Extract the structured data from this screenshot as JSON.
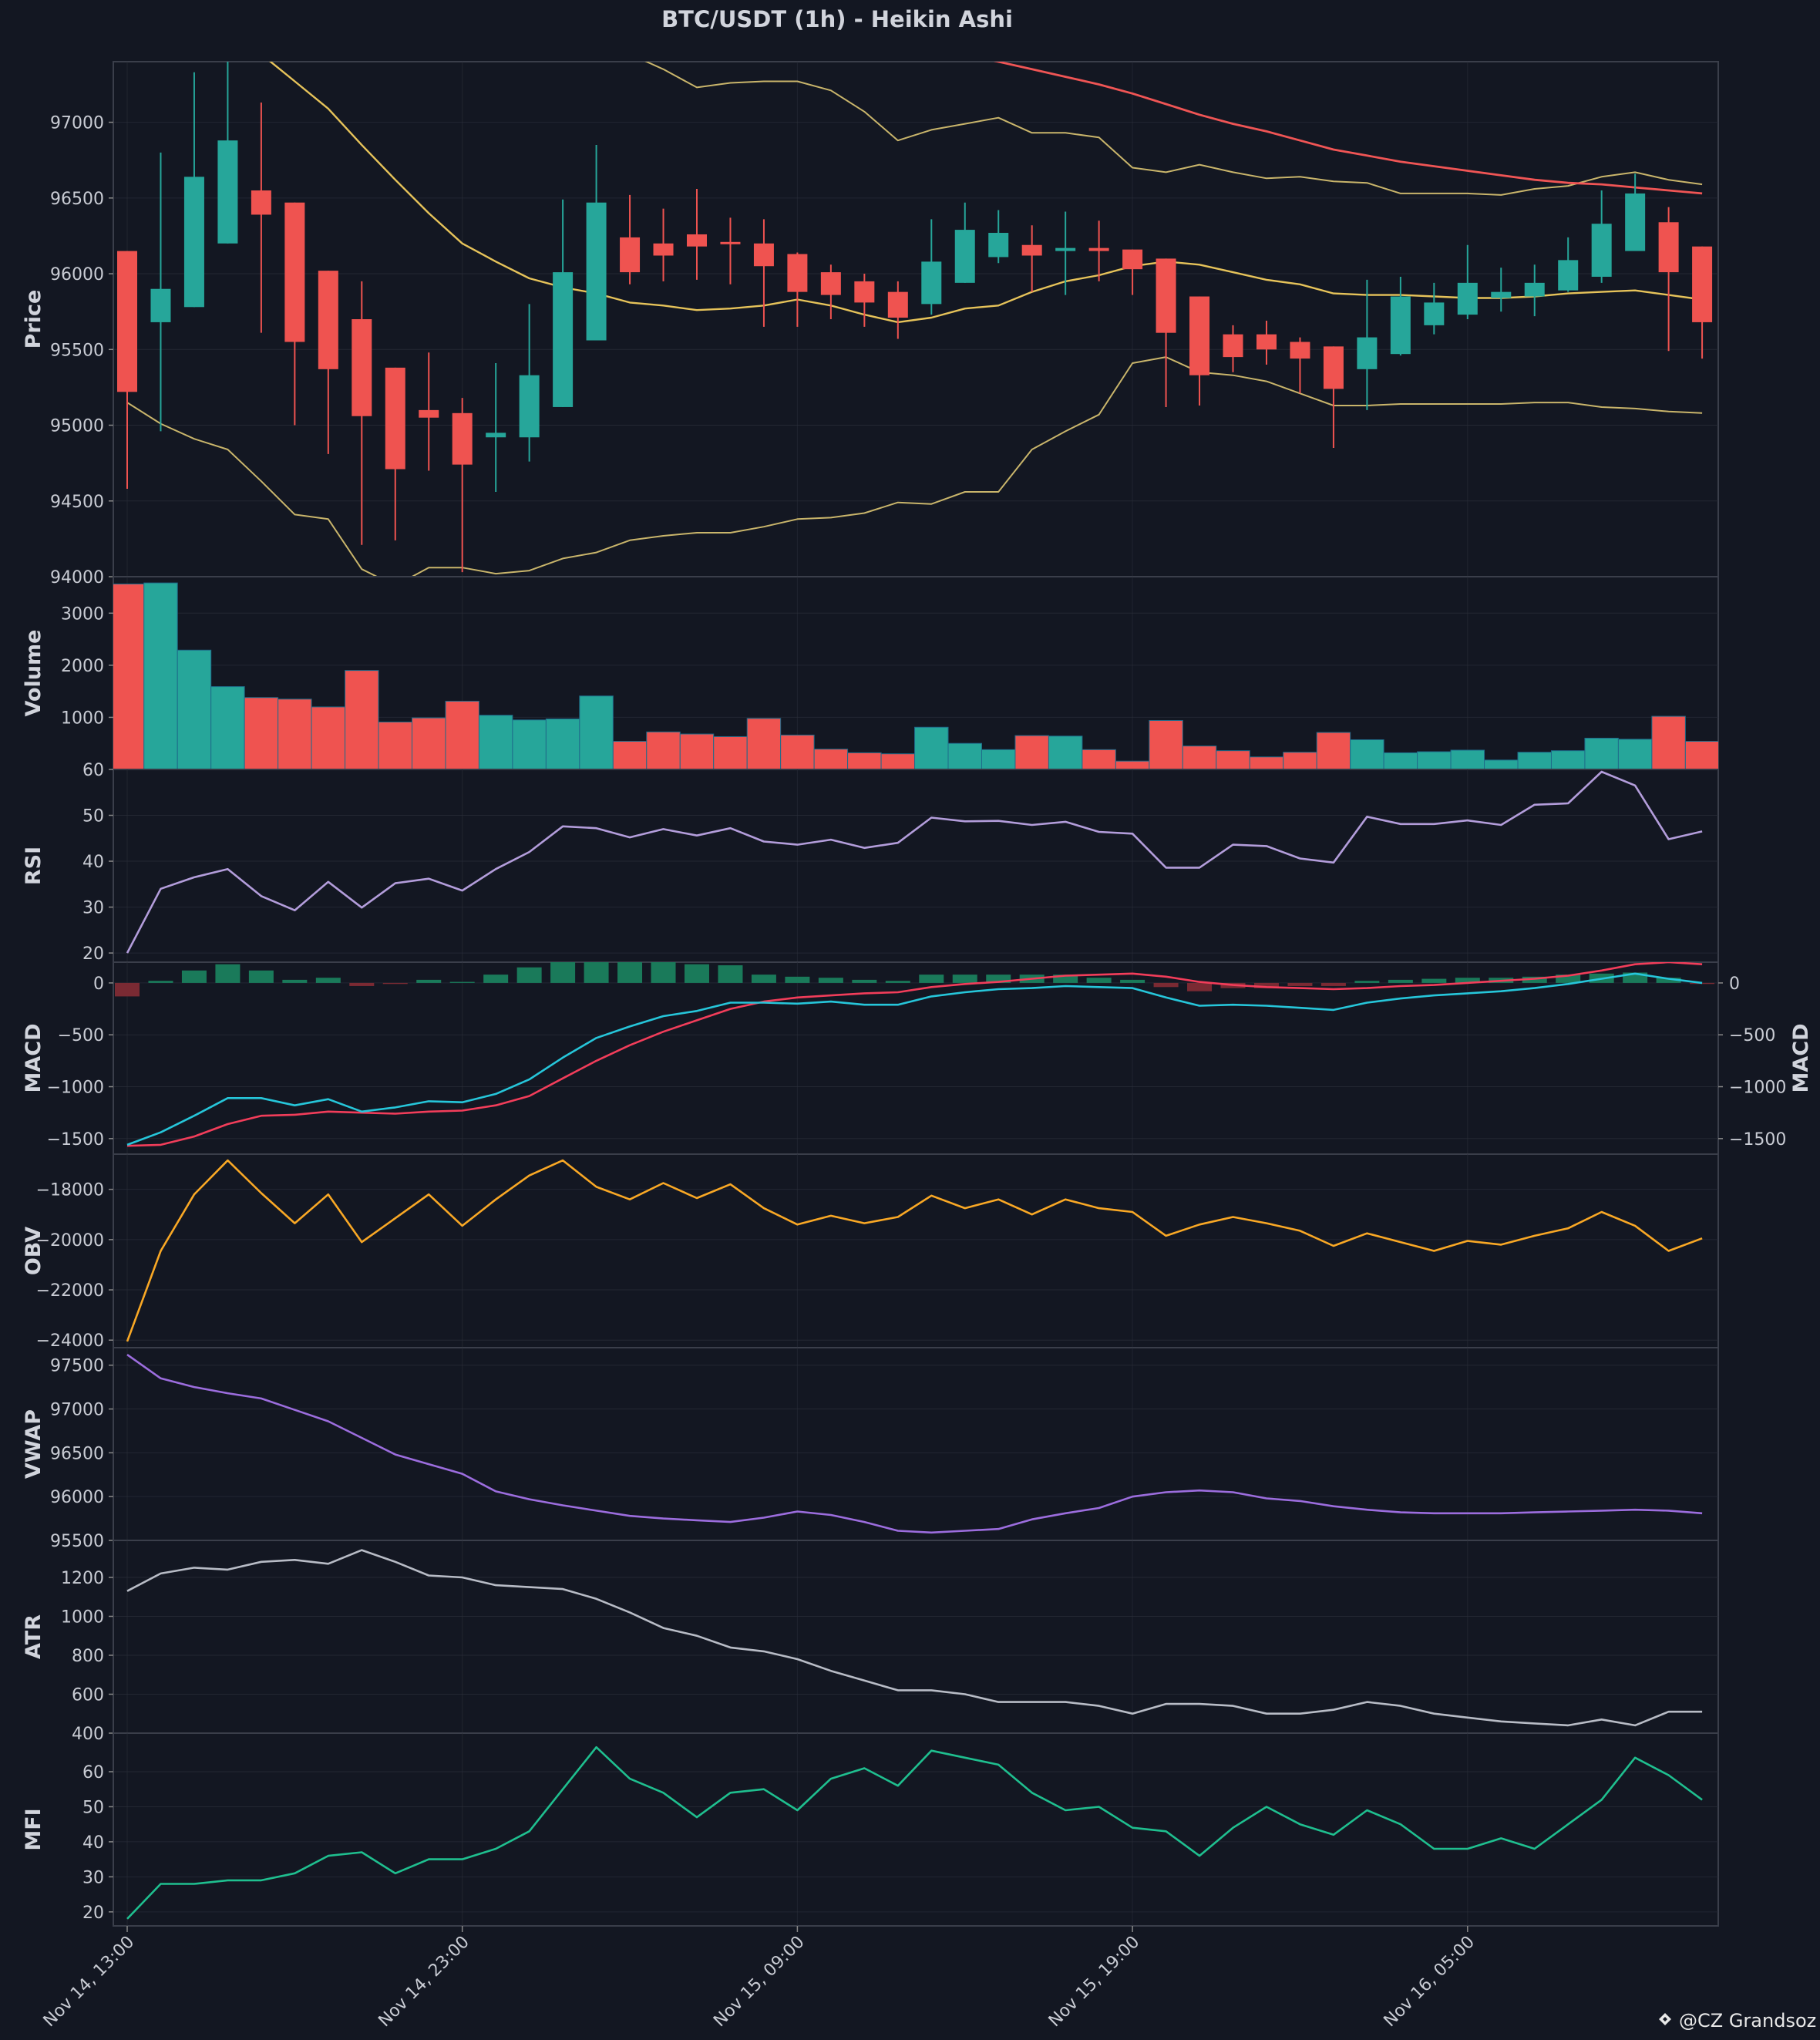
{
  "chart_data": {
    "type": "candlestick-multipanel",
    "title": "BTC/USDT (1h) - Heikin Ashi",
    "x_tick_labels": [
      "Nov 14, 13:00",
      "Nov 14, 23:00",
      "Nov 15, 09:00",
      "Nov 15, 19:00",
      "Nov 16, 05:00"
    ],
    "x_tick_indices": [
      0,
      10,
      20,
      30,
      40
    ],
    "colors": {
      "up": "#26a69a",
      "down": "#ef5350",
      "background": "#131722",
      "grid": "#2a2e39"
    },
    "candles": {
      "open": [
        96150,
        95680,
        95780,
        96200,
        96550,
        96470,
        96020,
        95700,
        95380,
        95100,
        95080,
        94920,
        94920,
        95120,
        95560,
        96240,
        96200,
        96260,
        96210,
        96200,
        96130,
        96010,
        95950,
        95880,
        95800,
        95940,
        96110,
        96190,
        96150,
        96170,
        96160,
        96100,
        95850,
        95600,
        95600,
        95550,
        95520,
        95370,
        95470,
        95660,
        95730,
        95840,
        95850,
        95890,
        95980,
        96150,
        96340,
        96180
      ],
      "close": [
        95220,
        95900,
        96640,
        96880,
        96390,
        95550,
        95370,
        95060,
        94710,
        95050,
        94740,
        94950,
        95330,
        96010,
        96470,
        96010,
        96120,
        96180,
        96200,
        96050,
        95880,
        95860,
        95810,
        95710,
        96080,
        96290,
        96270,
        96120,
        96170,
        96150,
        96030,
        95610,
        95330,
        95450,
        95500,
        95440,
        95240,
        95580,
        95850,
        95810,
        95940,
        95880,
        95940,
        96090,
        96330,
        96530,
        96010,
        95680
      ],
      "high": [
        96150,
        96800,
        97330,
        97420,
        97130,
        96470,
        96020,
        95950,
        95380,
        95480,
        95180,
        95410,
        95800,
        96490,
        96850,
        96520,
        96430,
        96560,
        96370,
        96360,
        96140,
        96060,
        96000,
        95950,
        96360,
        96470,
        96420,
        96320,
        96410,
        96350,
        96160,
        96100,
        95850,
        95660,
        95690,
        95580,
        95520,
        95960,
        95980,
        95940,
        96190,
        96040,
        96060,
        96240,
        96550,
        96660,
        96440,
        96180
      ],
      "low": [
        94580,
        94960,
        95780,
        96200,
        95610,
        95000,
        94810,
        94210,
        94240,
        94700,
        94030,
        94560,
        94760,
        95120,
        95560,
        95930,
        95950,
        95960,
        95930,
        95650,
        95650,
        95700,
        95650,
        95570,
        95730,
        95940,
        96070,
        95880,
        95860,
        95950,
        95860,
        95120,
        95130,
        95350,
        95400,
        95210,
        94850,
        95100,
        95460,
        95600,
        95700,
        95750,
        95720,
        95880,
        95940,
        96160,
        95490,
        95440
      ],
      "bb_upper": [
        97700,
        97600,
        97550,
        97550,
        97450,
        97270,
        97090,
        96850,
        96620,
        96400,
        96200,
        96080,
        95970,
        95910,
        95870,
        95810,
        95790,
        95760,
        95770,
        95790,
        95830,
        95790,
        95730,
        95680,
        95710,
        95770,
        95790,
        95880,
        95950,
        95990,
        96050,
        96080,
        96060,
        96010,
        95960,
        95930,
        95870,
        95860,
        95860,
        95850,
        95840,
        95840,
        95850,
        95870,
        95880,
        95890,
        95860,
        95830
      ],
      "bb_middle": [
        97800,
        97800,
        97800,
        97800,
        97800,
        97800,
        97800,
        97800,
        97800,
        97800,
        97800,
        97800,
        97750,
        97650,
        97550,
        97450,
        97350,
        97230,
        97260,
        97270,
        97270,
        97210,
        97070,
        96880,
        96950,
        96990,
        97030,
        96930,
        96930,
        96900,
        96700,
        96670,
        96720,
        96670,
        96630,
        96640,
        96610,
        96600,
        96530,
        96530,
        96530,
        96520,
        96560,
        96580,
        96640,
        96670,
        96620,
        96590
      ],
      "bb_lower": [
        95150,
        95010,
        94910,
        94840,
        94630,
        94410,
        94380,
        94050,
        93940,
        94060,
        94060,
        94020,
        94040,
        94120,
        94160,
        94240,
        94270,
        94290,
        94290,
        94330,
        94380,
        94390,
        94420,
        94490,
        94480,
        94560,
        94560,
        94840,
        94960,
        95070,
        95410,
        95450,
        95350,
        95330,
        95290,
        95210,
        95130,
        95130,
        95140,
        95140,
        95140,
        95140,
        95150,
        95150,
        95120,
        95110,
        95090,
        95080
      ],
      "ema": [
        97800,
        97800,
        97800,
        97800,
        97800,
        97800,
        97800,
        97800,
        97800,
        97800,
        97800,
        97800,
        97800,
        97800,
        97800,
        97800,
        97800,
        97800,
        97800,
        97800,
        97800,
        97800,
        97800,
        97800,
        97550,
        97450,
        97400,
        97350,
        97300,
        97250,
        97190,
        97120,
        97050,
        96990,
        96940,
        96880,
        96820,
        96780,
        96740,
        96710,
        96680,
        96650,
        96620,
        96600,
        96590,
        96570,
        96550,
        96530
      ]
    },
    "volume": [
      3560,
      3580,
      2290,
      1590,
      1380,
      1350,
      1200,
      1900,
      910,
      990,
      1310,
      1040,
      950,
      970,
      1410,
      540,
      720,
      680,
      630,
      980,
      660,
      390,
      320,
      300,
      810,
      500,
      380,
      650,
      640,
      380,
      160,
      940,
      450,
      360,
      240,
      330,
      710,
      570,
      320,
      340,
      370,
      180,
      330,
      360,
      600,
      580,
      1020,
      540
    ],
    "rsi": [
      20,
      34,
      36.5,
      38.3,
      32.4,
      29.3,
      35.5,
      29.9,
      35.2,
      36.2,
      33.6,
      38.3,
      42,
      47.6,
      47.2,
      45.2,
      47,
      45.6,
      47.2,
      44.3,
      43.6,
      44.7,
      42.9,
      44,
      49.5,
      48.7,
      48.8,
      47.9,
      48.6,
      46.4,
      46,
      38.6,
      38.6,
      43.6,
      43.3,
      40.6,
      39.7,
      49.7,
      48.1,
      48.1,
      48.9,
      47.9,
      52.3,
      52.6,
      59.5,
      56.5,
      44.8,
      46.5
    ],
    "macd_line": [
      -1560,
      -1440,
      -1280,
      -1110,
      -1110,
      -1180,
      -1120,
      -1240,
      -1200,
      -1140,
      -1150,
      -1070,
      -930,
      -720,
      -530,
      -420,
      -320,
      -270,
      -190,
      -190,
      -200,
      -180,
      -210,
      -210,
      -130,
      -90,
      -60,
      -50,
      -30,
      -40,
      -50,
      -140,
      -220,
      -210,
      -220,
      -240,
      -260,
      -190,
      -150,
      -120,
      -100,
      -80,
      -50,
      -10,
      40,
      90,
      40,
      0
    ],
    "macd_signal": [
      -1570,
      -1560,
      -1480,
      -1360,
      -1280,
      -1270,
      -1240,
      -1250,
      -1260,
      -1240,
      -1230,
      -1180,
      -1090,
      -920,
      -750,
      -600,
      -470,
      -360,
      -250,
      -180,
      -140,
      -120,
      -100,
      -90,
      -40,
      -10,
      10,
      40,
      70,
      80,
      90,
      60,
      10,
      -20,
      -40,
      -50,
      -60,
      -50,
      -30,
      -20,
      0,
      20,
      40,
      70,
      120,
      180,
      200,
      180
    ],
    "macd_hist": [
      -130,
      20,
      120,
      180,
      120,
      30,
      50,
      -30,
      -10,
      30,
      10,
      80,
      150,
      270,
      280,
      250,
      220,
      180,
      170,
      80,
      60,
      50,
      30,
      20,
      80,
      80,
      80,
      80,
      80,
      50,
      30,
      -40,
      -80,
      -50,
      -50,
      -30,
      -30,
      20,
      30,
      40,
      50,
      50,
      60,
      80,
      90,
      100,
      50,
      -10
    ],
    "obv": [
      -24050,
      -20450,
      -18200,
      -16850,
      -18150,
      -19350,
      -18200,
      -20100,
      -19150,
      -18200,
      -19450,
      -18400,
      -17450,
      -16850,
      -17900,
      -18400,
      -17750,
      -18350,
      -17800,
      -18750,
      -19400,
      -19050,
      -19350,
      -19100,
      -18250,
      -18750,
      -18400,
      -19000,
      -18400,
      -18750,
      -18900,
      -19850,
      -19400,
      -19100,
      -19350,
      -19650,
      -20250,
      -19750,
      -20100,
      -20450,
      -20050,
      -20200,
      -19850,
      -19550,
      -18900,
      -19450,
      -20450,
      -19950
    ],
    "vwap": [
      97620,
      97350,
      97250,
      97180,
      97120,
      96990,
      96860,
      96670,
      96480,
      96370,
      96260,
      96060,
      95970,
      95900,
      95840,
      95780,
      95750,
      95730,
      95710,
      95760,
      95830,
      95790,
      95710,
      95610,
      95590,
      95610,
      95630,
      95740,
      95810,
      95870,
      96000,
      96050,
      96070,
      96050,
      95980,
      95950,
      95890,
      95850,
      95820,
      95810,
      95810,
      95810,
      95820,
      95830,
      95840,
      95850,
      95840,
      95810
    ],
    "atr": [
      1130,
      1220,
      1250,
      1240,
      1280,
      1290,
      1270,
      1340,
      1280,
      1210,
      1200,
      1160,
      1150,
      1140,
      1090,
      1020,
      940,
      900,
      840,
      820,
      780,
      720,
      670,
      620,
      620,
      600,
      560,
      560,
      560,
      540,
      500,
      550,
      550,
      540,
      500,
      500,
      520,
      560,
      540,
      500,
      480,
      460,
      450,
      440,
      470,
      440,
      510,
      510
    ],
    "mfi": [
      18,
      28,
      28,
      29,
      29,
      31,
      36,
      37,
      31,
      35,
      35,
      38,
      43,
      55,
      67,
      58,
      54,
      47,
      54,
      55,
      49,
      58,
      61,
      56,
      66,
      64,
      62,
      54,
      49,
      50,
      44,
      43,
      36,
      44,
      50,
      45,
      42,
      49,
      45,
      38,
      38,
      41,
      38,
      45,
      52,
      64,
      59,
      52
    ],
    "panels": [
      {
        "key": "price",
        "ylabel": "Price",
        "ylim": [
          94000,
          97400
        ],
        "ticks": [
          94000,
          94500,
          95000,
          95500,
          96000,
          96500,
          97000
        ]
      },
      {
        "key": "volume",
        "ylabel": "Volume",
        "ylim": [
          0,
          3700
        ],
        "ticks": [
          1000,
          2000,
          3000
        ]
      },
      {
        "key": "rsi",
        "ylabel": "RSI",
        "ylim": [
          18,
          60
        ],
        "ticks": [
          20,
          30,
          40,
          50,
          60
        ]
      },
      {
        "key": "macd",
        "ylabel": "MACD",
        "ylim": [
          -1650,
          200
        ],
        "ticks": [
          -1500,
          -1000,
          -500,
          0
        ],
        "right_ticks": [
          -1500,
          -1000,
          -500,
          0
        ]
      },
      {
        "key": "obv",
        "ylabel": "OBV",
        "ylim": [
          -24300,
          -16600
        ],
        "ticks": [
          -24000,
          -22000,
          -20000,
          -18000
        ]
      },
      {
        "key": "vwap",
        "ylabel": "VWAP",
        "ylim": [
          95500,
          97700
        ],
        "ticks": [
          95500,
          96000,
          96500,
          97000,
          97500
        ]
      },
      {
        "key": "atr",
        "ylabel": "ATR",
        "ylim": [
          400,
          1390
        ],
        "ticks": [
          400,
          600,
          800,
          1000,
          1200
        ]
      },
      {
        "key": "mfi",
        "ylabel": "MFI",
        "ylim": [
          16,
          71
        ],
        "ticks": [
          20,
          30,
          40,
          50,
          60
        ]
      }
    ],
    "line_colors": {
      "rsi": "#b39ddb",
      "macd_line": "#26c6da",
      "macd_signal": "#f23d5a",
      "obv": "#f9a825",
      "vwap": "#9c6dde",
      "atr": "#b8bcc6",
      "mfi": "#1fbf8f",
      "bb_upper": "#e6c35a",
      "bb_lower": "#c9b56b",
      "bb_middle": "#c9b56b",
      "ema": "#f05555"
    }
  },
  "watermark": "@CZ Grandsoz"
}
